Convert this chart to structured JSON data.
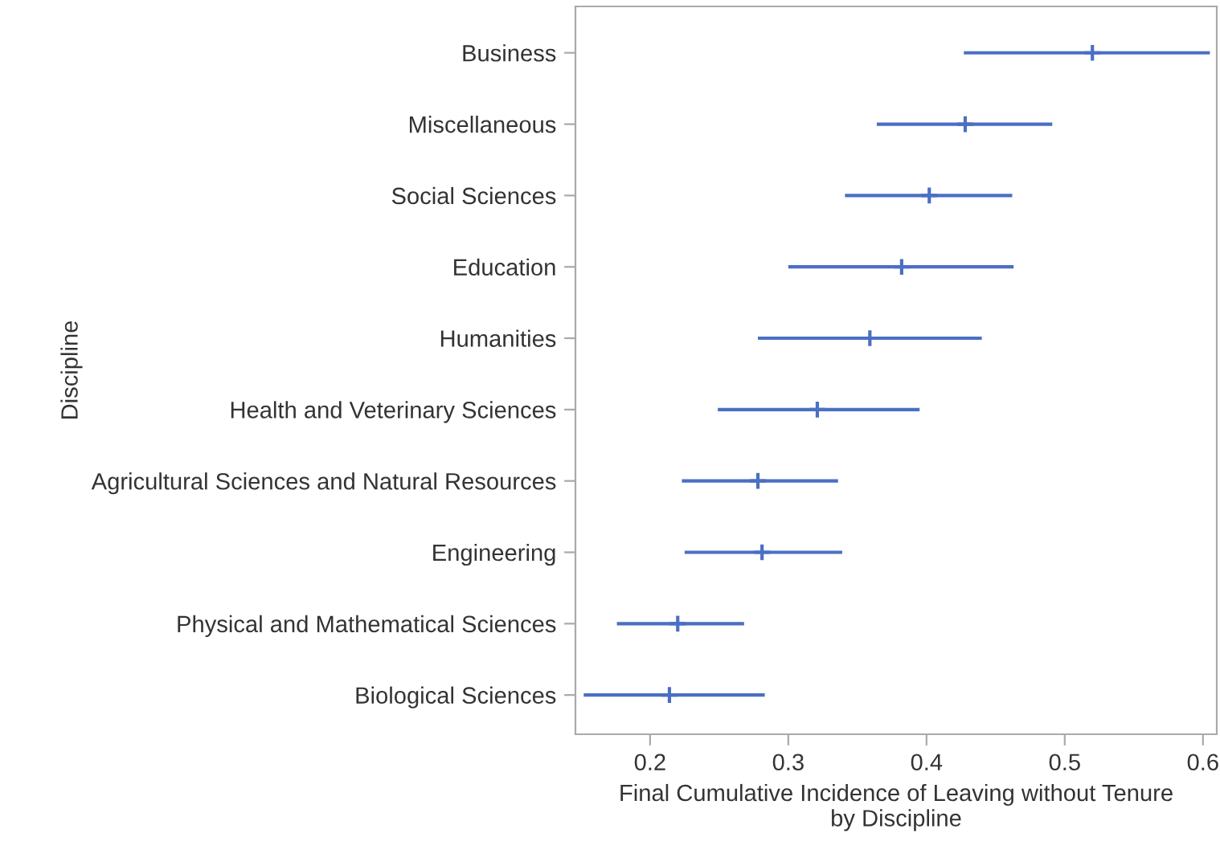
{
  "chart_data": {
    "type": "scatter",
    "marker": "cross",
    "orientation": "horizontal",
    "grid": false,
    "legend": false,
    "xlabel": "Final Cumulative Incidence of Leaving without Tenure\nby Discipline",
    "ylabel": "Discipline",
    "categories": [
      "Business",
      "Miscellaneous",
      "Social Sciences",
      "Education",
      "Humanities",
      "Health and Veterinary Sciences",
      "Agricultural Sciences and Natural Resources",
      "Engineering",
      "Physical and Mathematical Sciences",
      "Biological Sciences"
    ],
    "xlim": [
      0.146,
      0.61
    ],
    "xticks": [
      {
        "value": 0.2,
        "label": "0.2"
      },
      {
        "value": 0.3,
        "label": "0.3"
      },
      {
        "value": 0.4,
        "label": "0.4"
      },
      {
        "value": 0.5,
        "label": "0.5"
      },
      {
        "value": 0.6,
        "label": "0.6"
      }
    ],
    "series": [
      {
        "color": "#4a6fc4",
        "values": [
          0.52,
          0.428,
          0.402,
          0.382,
          0.359,
          0.321,
          0.278,
          0.281,
          0.22,
          0.214
        ],
        "errors": [
          [
            0.427,
            0.605
          ],
          [
            0.364,
            0.491
          ],
          [
            0.341,
            0.462
          ],
          [
            0.3,
            0.463
          ],
          [
            0.278,
            0.44
          ],
          [
            0.249,
            0.395
          ],
          [
            0.223,
            0.336
          ],
          [
            0.225,
            0.339
          ],
          [
            0.176,
            0.268
          ],
          [
            0.152,
            0.283
          ]
        ]
      }
    ]
  }
}
